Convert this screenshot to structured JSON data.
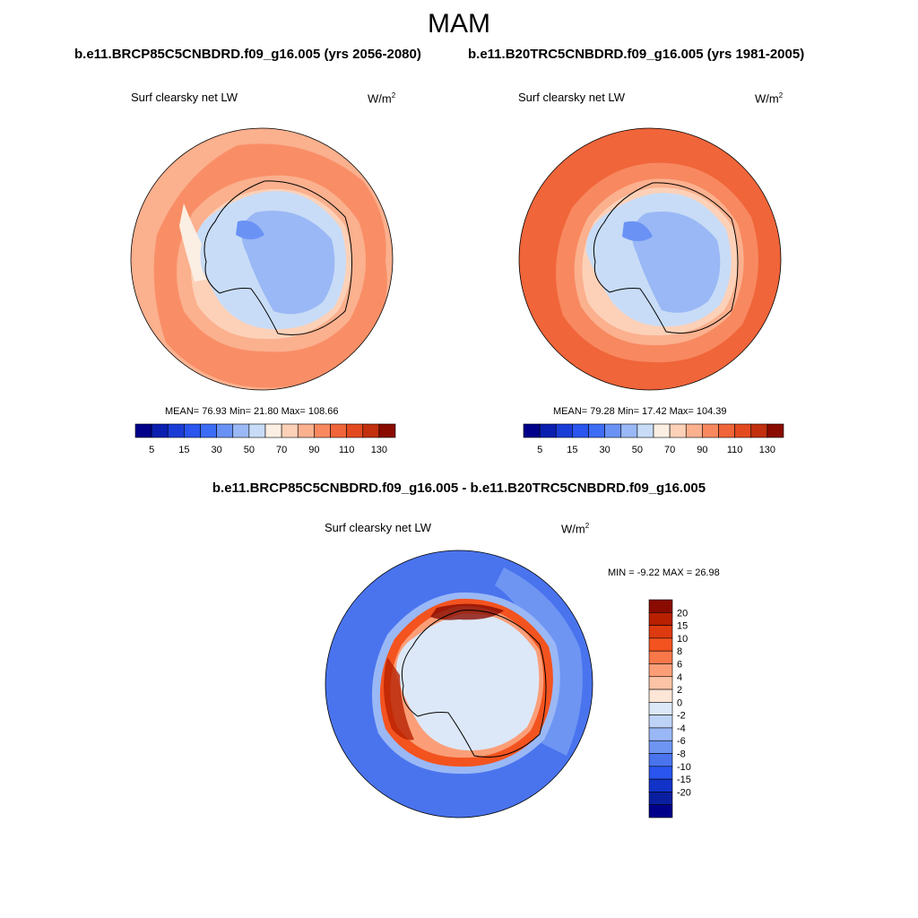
{
  "season": "MAM",
  "panels": [
    {
      "title": "b.e11.BRCP85C5CNBDRD.f09_g16.005 (yrs 2056-2080)",
      "variable": "Surf clearsky net LW",
      "units_base": "W/m",
      "units_exp": "2",
      "stats": "MEAN=  76.93  Min=  21.80  Max= 108.66"
    },
    {
      "title": "b.e11.B20TRC5CNBDRD.f09_g16.005 (yrs 1981-2005)",
      "variable": "Surf clearsky net LW",
      "units_base": "W/m",
      "units_exp": "2",
      "stats": "MEAN=  79.28  Min=  17.42  Max= 104.39"
    }
  ],
  "difference": {
    "title": "b.e11.BRCP85C5CNBDRD.f09_g16.005 - b.e11.B20TRC5CNBDRD.f09_g16.005",
    "variable": "Surf clearsky net LW",
    "units_base": "W/m",
    "units_exp": "2",
    "stats": "MIN =  -9.22 MAX =  26.98"
  },
  "chart_data": [
    {
      "type": "heatmap",
      "projection": "south polar stereographic",
      "title": "Surf clearsky net LW",
      "units": "W/m2",
      "mean": 76.93,
      "min": 21.8,
      "max": 108.66,
      "colorbar_levels": [
        5,
        10,
        15,
        20,
        30,
        40,
        50,
        60,
        70,
        80,
        90,
        100,
        110,
        120,
        130
      ],
      "colorbar_labels": [
        "5",
        "15",
        "30",
        "50",
        "70",
        "90",
        "110",
        "130"
      ],
      "colors": [
        "#00008a",
        "#0a1fb0",
        "#1a3cd6",
        "#2a55ee",
        "#3d6cf5",
        "#6a92f5",
        "#9ab8f5",
        "#c8dcf7",
        "#fbeee2",
        "#fcd1b8",
        "#fbb08e",
        "#f8885f",
        "#f0653a",
        "#e34a20",
        "#c2300f",
        "#8a0b00"
      ]
    },
    {
      "type": "heatmap",
      "projection": "south polar stereographic",
      "title": "Surf clearsky net LW",
      "units": "W/m2",
      "mean": 79.28,
      "min": 17.42,
      "max": 104.39,
      "colorbar_levels": [
        5,
        10,
        15,
        20,
        30,
        40,
        50,
        60,
        70,
        80,
        90,
        100,
        110,
        120,
        130
      ],
      "colorbar_labels": [
        "5",
        "15",
        "30",
        "50",
        "70",
        "90",
        "110",
        "130"
      ],
      "colors": [
        "#00008a",
        "#0a1fb0",
        "#1a3cd6",
        "#2a55ee",
        "#3d6cf5",
        "#6a92f5",
        "#9ab8f5",
        "#c8dcf7",
        "#fbeee2",
        "#fcd1b8",
        "#fbb08e",
        "#f8885f",
        "#f0653a",
        "#e34a20",
        "#c2300f",
        "#8a0b00"
      ]
    },
    {
      "type": "heatmap",
      "projection": "south polar stereographic",
      "title": "Surf clearsky net LW (difference)",
      "units": "W/m2",
      "min": -9.22,
      "max": 26.98,
      "colorbar_levels": [
        20,
        15,
        10,
        8,
        6,
        4,
        2,
        0,
        -2,
        -4,
        -6,
        -8,
        -10,
        -15,
        -20
      ],
      "colorbar_labels": [
        "20",
        "15",
        "10",
        "8",
        "6",
        "4",
        "2",
        "0",
        "-2",
        "-4",
        "-6",
        "-8",
        "-10",
        "-15",
        "-20"
      ],
      "colors": [
        "#8a0b00",
        "#b82000",
        "#dd3a10",
        "#f3531f",
        "#f8784a",
        "#fb9e78",
        "#fcc3a6",
        "#fde6d6",
        "#dce8f8",
        "#bfd3f6",
        "#9ab8f5",
        "#6f95f3",
        "#4a74ee",
        "#2a55ee",
        "#1233c8",
        "#0a1fa0",
        "#00008a"
      ]
    }
  ]
}
